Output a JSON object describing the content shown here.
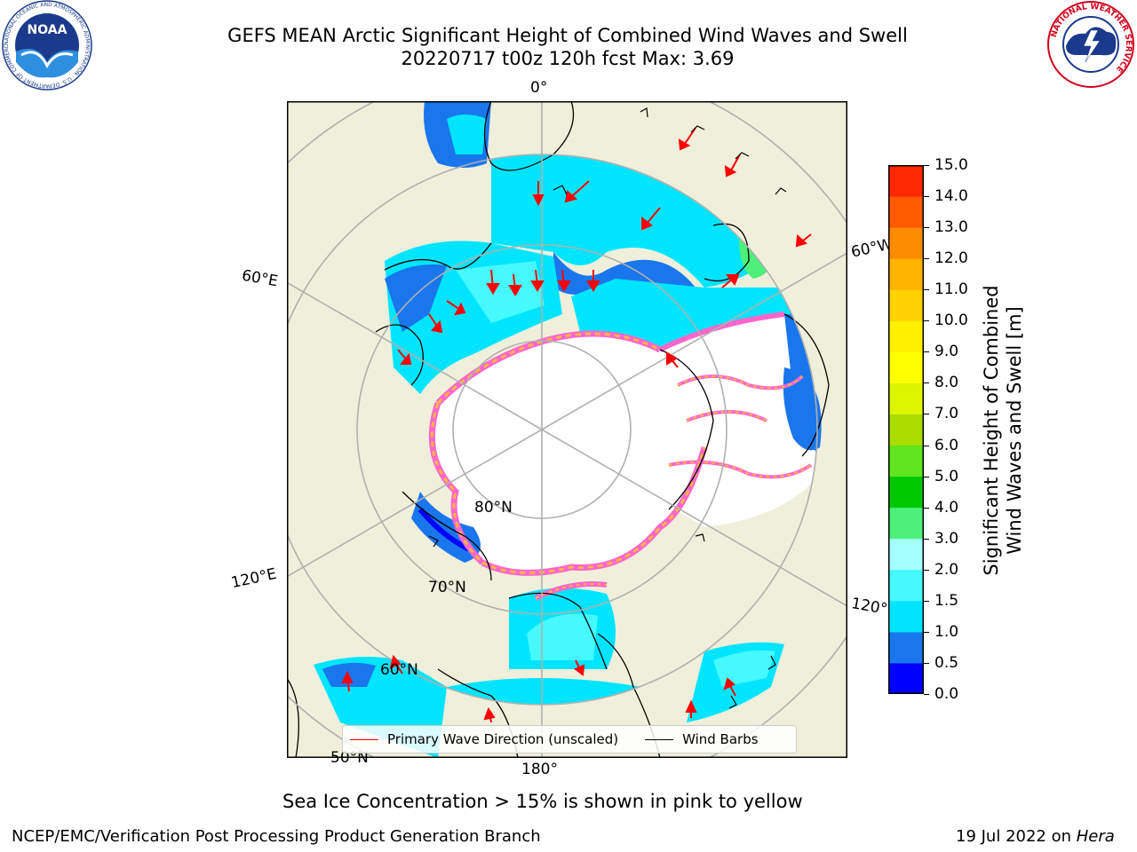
{
  "title_line1": "GEFS MEAN Arctic Significant Height of Combined Wind Waves and Swell",
  "title_line2": "20220717 t00z 120h fcst   Max: 3.69",
  "ice_note": "Sea Ice Concentration > 15% is shown in pink to yellow",
  "footer_left": "NCEP/EMC/Verification Post Processing Product Generation Branch",
  "footer_right_date": "19 Jul 2022 on",
  "footer_right_host": "Hera",
  "logos": {
    "noaa_text": "NOAA",
    "noaa_ring": "NATIONAL OCEANIC AND ATMOSPHERIC ADMINISTRATION · U.S. DEPARTMENT OF COMMERCE",
    "nws_ring": "NATIONAL WEATHER SERVICE"
  },
  "colorbar": {
    "label_line1": "Significant Height of Combined",
    "label_line2": "Wind Waves and Swell [m]",
    "ticks": [
      "0.0",
      "0.5",
      "1.0",
      "1.5",
      "2.0",
      "3.0",
      "4.0",
      "5.0",
      "6.0",
      "7.0",
      "8.0",
      "9.0",
      "10.0",
      "11.0",
      "12.0",
      "13.0",
      "14.0",
      "15.0"
    ],
    "colors": [
      "#0000ff",
      "#1a76ec",
      "#00e5ff",
      "#45f9ff",
      "#a4ffff",
      "#4df07a",
      "#00c800",
      "#5fe61e",
      "#aadc00",
      "#dcf500",
      "#ffff00",
      "#fff000",
      "#ffd200",
      "#ffb400",
      "#ff8c00",
      "#ff5a00",
      "#ff2800",
      "#ff0000"
    ]
  },
  "grid_labels": {
    "lon_0": "0°",
    "lon_60w": "60°W",
    "lon_60e": "60°E",
    "lon_120e": "120°E",
    "lon_120w": "120°W",
    "lon_180": "180°",
    "lat_80": "80°N",
    "lat_70": "70°N",
    "lat_60": "60°N",
    "lat_50": "50°N"
  },
  "legend": {
    "wave_dir_label": "Primary Wave Direction (unscaled)",
    "wind_barbs_label": "Wind Barbs",
    "wave_dir_color": "#ff0000",
    "wind_barbs_color": "#000000"
  },
  "colors": {
    "land": "#efefdc",
    "ice_white": "#ffffff",
    "ice_pink": "#ff66cc",
    "ice_orange": "#ffb347",
    "grid": "#b0b0b0"
  }
}
